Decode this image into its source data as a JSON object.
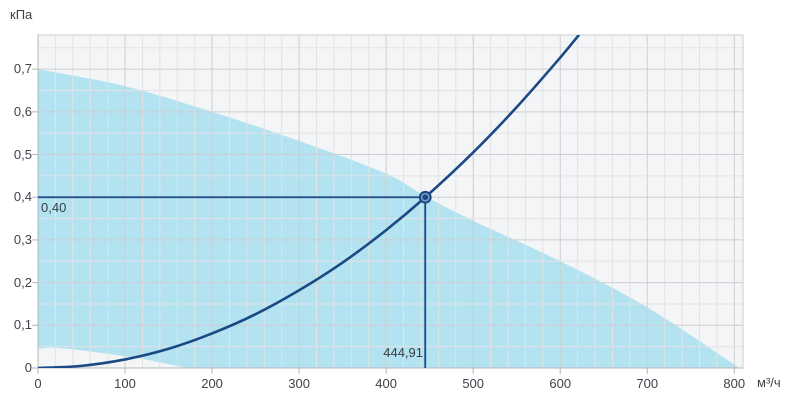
{
  "colors": {
    "navy": "#1a4a85",
    "area_blue": "#b3e2f0",
    "plot_bg": "#f4f5f6",
    "grid_minor": "#e2e3e5",
    "grid_major": "#cdced1",
    "axis": "#b6b7ba",
    "text": "#3e434b",
    "marker_ring": "#7d9cc0"
  },
  "labels": {
    "y_unit": "кПа",
    "x_unit": "м³/ч"
  },
  "chart_data": {
    "type": "line",
    "title": "",
    "xlabel": "м³/ч",
    "ylabel": "кПа",
    "xlim": [
      0,
      810
    ],
    "ylim": [
      0,
      0.78
    ],
    "grid": "on",
    "legend": "none",
    "x_ticks": {
      "values": [
        0,
        100,
        200,
        300,
        400,
        500,
        600,
        700,
        800
      ],
      "labels": [
        "0",
        "100",
        "200",
        "300",
        "400",
        "500",
        "600",
        "700",
        "800"
      ]
    },
    "y_ticks": {
      "values": [
        0,
        0.1,
        0.2,
        0.3,
        0.4,
        0.5,
        0.6,
        0.7
      ],
      "labels": [
        "0",
        "0,1",
        "0,2",
        "0,3",
        "0,4",
        "0,5",
        "0,6",
        "0,7"
      ]
    },
    "minor_grid": {
      "x_step": 20,
      "y_step": 0.05
    },
    "series": [
      {
        "name": "system-resistance-curve",
        "type": "line",
        "points": [
          [
            0,
            0
          ],
          [
            50,
            0.005
          ],
          [
            100,
            0.02
          ],
          [
            150,
            0.045
          ],
          [
            200,
            0.081
          ],
          [
            250,
            0.126
          ],
          [
            300,
            0.182
          ],
          [
            350,
            0.247
          ],
          [
            400,
            0.323
          ],
          [
            444.91,
            0.4
          ],
          [
            500,
            0.505
          ],
          [
            550,
            0.611
          ],
          [
            600,
            0.727
          ],
          [
            621,
            0.779
          ]
        ]
      }
    ],
    "operating_area": {
      "name": "fan-operating-envelope",
      "upper": [
        [
          0,
          0.7
        ],
        [
          100,
          0.66
        ],
        [
          200,
          0.6
        ],
        [
          300,
          0.532
        ],
        [
          400,
          0.455
        ],
        [
          445,
          0.402
        ],
        [
          500,
          0.345
        ],
        [
          600,
          0.25
        ],
        [
          700,
          0.142
        ],
        [
          806,
          0
        ]
      ],
      "lower": [
        [
          0,
          0.045
        ],
        [
          20,
          0.047
        ],
        [
          70,
          0.036
        ],
        [
          120,
          0.021
        ],
        [
          150,
          0.009
        ],
        [
          171,
          0
        ]
      ]
    },
    "operating_point": {
      "x": 444.91,
      "y": 0.4,
      "flow_label": "444,91",
      "pressure_label": "0,40"
    }
  }
}
